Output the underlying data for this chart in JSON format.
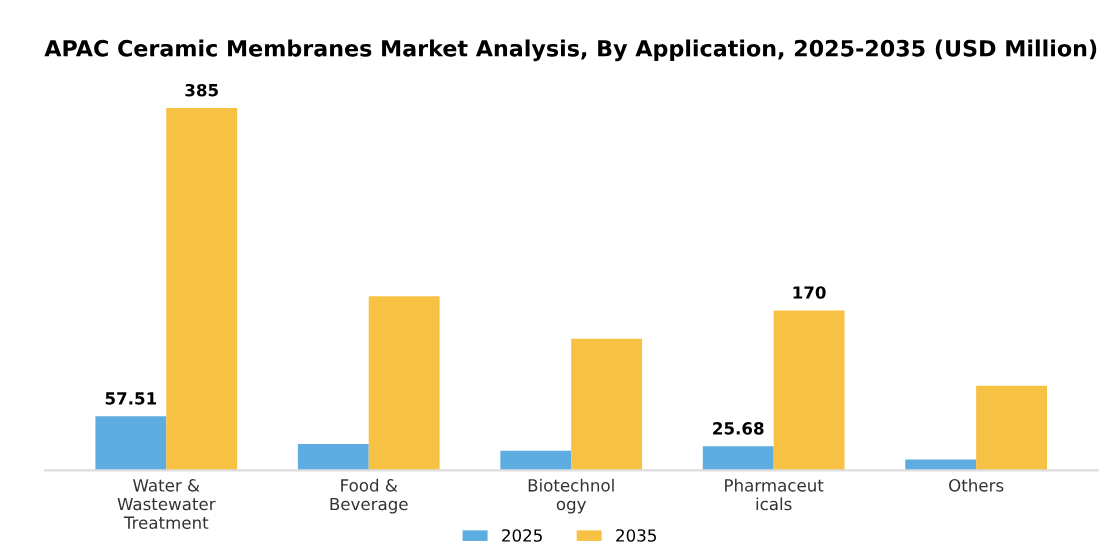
{
  "chart_data": {
    "type": "bar",
    "title": "APAC Ceramic Membranes Market Analysis, By Application, 2025-2035 (USD Million)",
    "categories": [
      "Water &\nWastewater\nTreatment",
      "Food &\nBeverage",
      "Biotechnol\nogy",
      "Pharmaceut\nicals",
      "Others"
    ],
    "series": [
      {
        "name": "2025",
        "color": "#5dade2",
        "values": [
          57.51,
          28,
          21,
          25.68,
          11.5
        ],
        "value_labels": [
          "57.51",
          null,
          null,
          "25.68",
          null
        ]
      },
      {
        "name": "2035",
        "color": "#f7c144",
        "values": [
          385,
          185,
          140,
          170,
          90
        ],
        "value_labels": [
          "385",
          null,
          null,
          "170",
          null
        ]
      }
    ],
    "legend": "bottom",
    "grid": false
  }
}
